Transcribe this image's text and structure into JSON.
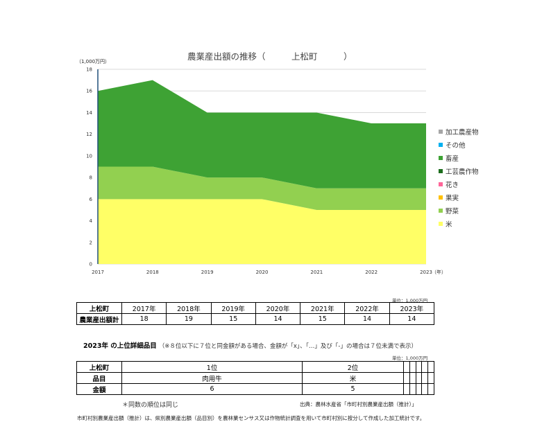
{
  "chart_title": "農業産出額の推移（　　　上松町　　　）",
  "y_unit": "（1,000万円）",
  "x_unit": "（年）",
  "colors": {
    "rice": "#ffff66",
    "vegetables": "#92d050",
    "livestock": "#3ea234",
    "grid": "#d9d9d9",
    "axis": "#1f4e79"
  },
  "legend": [
    {
      "label": "加工農産物",
      "color": "#a6a6a6"
    },
    {
      "label": "その他",
      "color": "#00b0f0"
    },
    {
      "label": "畜産",
      "color": "#3ea234"
    },
    {
      "label": "工芸農作物",
      "color": "#1e6e1e"
    },
    {
      "label": "花き",
      "color": "#ff6699"
    },
    {
      "label": "果実",
      "color": "#ffc000"
    },
    {
      "label": "野菜",
      "color": "#92d050"
    },
    {
      "label": "米",
      "color": "#ffff66"
    }
  ],
  "chart_data": {
    "type": "area",
    "stacked": true,
    "x": [
      "2017",
      "2018",
      "2019",
      "2020",
      "2021",
      "2022",
      "2023"
    ],
    "ylim": [
      0,
      18
    ],
    "yticks": [
      0,
      2,
      4,
      6,
      8,
      10,
      12,
      14,
      16,
      18
    ],
    "grid": true,
    "legend_position": "right",
    "series": [
      {
        "name": "米",
        "values": [
          6,
          6,
          6,
          6,
          5,
          5,
          5
        ]
      },
      {
        "name": "野菜",
        "values": [
          3,
          3,
          2,
          2,
          2,
          2,
          2
        ]
      },
      {
        "name": "果実",
        "values": [
          0,
          0,
          0,
          0,
          0,
          0,
          0
        ]
      },
      {
        "name": "花き",
        "values": [
          0,
          0,
          0,
          0,
          0,
          0,
          0
        ]
      },
      {
        "name": "工芸農作物",
        "values": [
          0,
          0,
          0,
          0,
          0,
          0,
          0
        ]
      },
      {
        "name": "畜産",
        "values": [
          7,
          8,
          6,
          6,
          7,
          6,
          6
        ]
      },
      {
        "name": "その他",
        "values": [
          0,
          0,
          0,
          0,
          0,
          0,
          0
        ]
      },
      {
        "name": "加工農産物",
        "values": [
          0,
          0,
          0,
          0,
          0,
          0,
          0
        ]
      }
    ]
  },
  "unit_note_1": "単位：1,000万円",
  "table1": {
    "corner": "上松町",
    "years": [
      "2017年",
      "2018年",
      "2019年",
      "2020年",
      "2021年",
      "2022年",
      "2023年"
    ],
    "row_label": "農業産出額計",
    "values": [
      "18",
      "19",
      "15",
      "14",
      "15",
      "14",
      "14"
    ]
  },
  "detail_title": "2023年 の上位詳細品目",
  "detail_note": "（※８位以下に７位と同金額がある場合、金額が「x」、「…」及び「-」の場合は７位未満で表示）",
  "unit_note_2": "単位：1,000万円",
  "table2": {
    "corner": "上松町",
    "ranks": [
      "1位",
      "2位",
      "",
      "",
      "",
      "",
      ""
    ],
    "item_label": "品目",
    "items": [
      "肉用牛",
      "米",
      "",
      "",
      "",
      "",
      ""
    ],
    "amount_label": "金額",
    "amounts": [
      "6",
      "5",
      "",
      "",
      "",
      "",
      ""
    ]
  },
  "rank_note": "＊同数の順位は同じ",
  "source": "出典：農林水産省「市町村別農業産出額（推計）」",
  "footnote": "市町村別農業産出額（推計）は、県別農業産出額（品目別）を農林業センサス又は作物統計調査を用いて市町村別に按分して作成した加工統計です。"
}
